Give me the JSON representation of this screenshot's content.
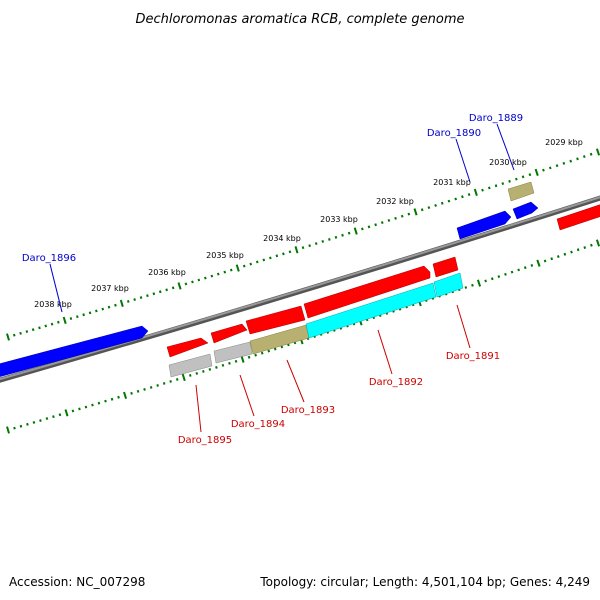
{
  "title": "Dechloromonas aromatica RCB, complete genome",
  "footer": {
    "accession": "Accession: NC_007298",
    "summary": "Topology: circular; Length: 4,501,104 bp; Genes: 4,249"
  },
  "colors": {
    "forward_label": "#0000cc",
    "reverse_label": "#cc0000",
    "tick": "#007700",
    "backbone": "#808080",
    "blue": "#0000ff",
    "red": "#ff0000",
    "cyan": "#00ffff",
    "olive": "#b8b070",
    "gray": "#c0c0c0"
  },
  "ticks": [
    {
      "label": "2029 kbp"
    },
    {
      "label": "2030 kbp"
    },
    {
      "label": "2031 kbp"
    },
    {
      "label": "2032 kbp"
    },
    {
      "label": "2033 kbp"
    },
    {
      "label": "2034 kbp"
    },
    {
      "label": "2035 kbp"
    },
    {
      "label": "2036 kbp"
    },
    {
      "label": "2037 kbp"
    },
    {
      "label": "2038 kbp"
    }
  ],
  "gene_labels": {
    "forward": [
      {
        "label": "Daro_1889"
      },
      {
        "label": "Daro_1890"
      },
      {
        "label": "Daro_1896"
      }
    ],
    "reverse": [
      {
        "label": "Daro_1891"
      },
      {
        "label": "Daro_1892"
      },
      {
        "label": "Daro_1893"
      },
      {
        "label": "Daro_1894"
      },
      {
        "label": "Daro_1895"
      }
    ]
  }
}
